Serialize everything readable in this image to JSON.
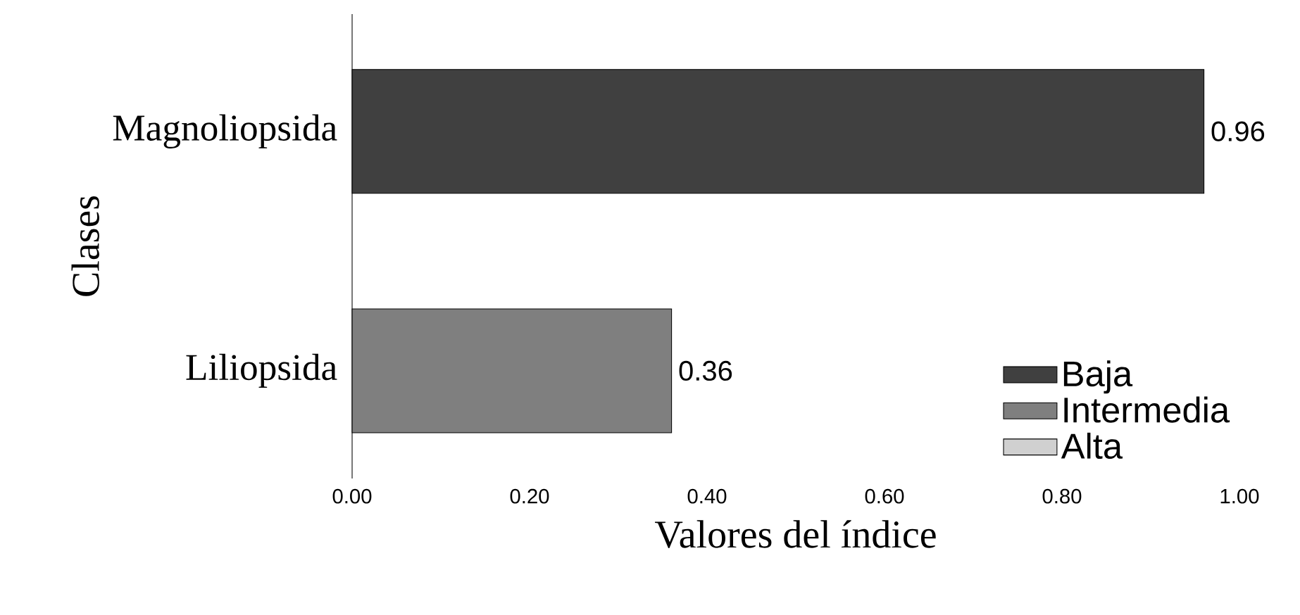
{
  "chart_data": {
    "type": "bar",
    "orientation": "horizontal",
    "xlabel": "Valores del índice",
    "ylabel": "Clases",
    "categories": [
      "Magnoliopsida",
      "Liliopsida"
    ],
    "series": [
      {
        "name": "Baja",
        "color": "#404040",
        "values": [
          0.96,
          null
        ],
        "value_labels": [
          "0.96",
          null
        ]
      },
      {
        "name": "Intermedia",
        "color": "#7f7f7f",
        "values": [
          null,
          0.36
        ],
        "value_labels": [
          null,
          "0.36"
        ]
      },
      {
        "name": "Alta",
        "color": "#d0d0d0",
        "values": [
          null,
          null
        ]
      }
    ],
    "xlim": [
      0,
      1.0
    ],
    "xticks": [
      {
        "value": 0,
        "label": "0.00"
      },
      {
        "value": 0.2,
        "label": "0.20"
      },
      {
        "value": 0.4,
        "label": "0.40"
      },
      {
        "value": 0.6,
        "label": "0.60"
      },
      {
        "value": 0.8,
        "label": "0.80"
      },
      {
        "value": 1.0,
        "label": "1.00"
      }
    ],
    "legend": "bottom right"
  }
}
